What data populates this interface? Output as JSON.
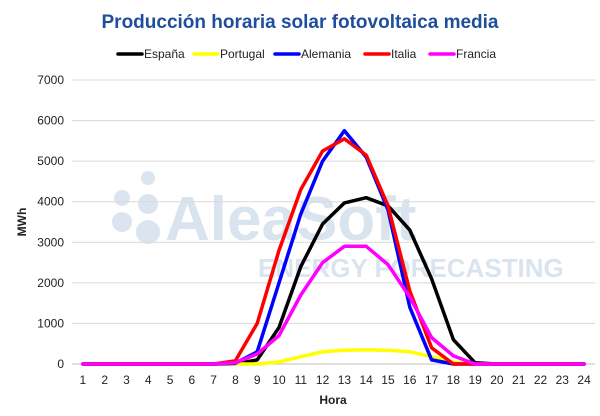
{
  "watermark": {
    "name": "AleaSoft",
    "tagline": "ENERGY FORECASTING"
  },
  "chart_data": {
    "type": "line",
    "title": "Producción horaria solar fotovoltaica media",
    "title_color": "#1f4e9c",
    "xlabel": "Hora",
    "ylabel": "MWh",
    "x": [
      1,
      2,
      3,
      4,
      5,
      6,
      7,
      8,
      9,
      10,
      11,
      12,
      13,
      14,
      15,
      16,
      17,
      18,
      19,
      20,
      21,
      22,
      23,
      24
    ],
    "ylim": [
      0,
      7000
    ],
    "yticks": [
      0,
      1000,
      2000,
      3000,
      4000,
      5000,
      6000,
      7000
    ],
    "grid": "horizontal",
    "legend_position": "top",
    "series": [
      {
        "name": "España",
        "color": "#000000",
        "values": [
          0,
          0,
          0,
          0,
          0,
          0,
          0,
          0,
          100,
          900,
          2400,
          3450,
          3970,
          4100,
          3900,
          3300,
          2100,
          600,
          30,
          0,
          0,
          0,
          0,
          0
        ]
      },
      {
        "name": "Portugal",
        "color": "#ffff00",
        "values": [
          0,
          0,
          0,
          0,
          0,
          0,
          0,
          0,
          0,
          50,
          180,
          300,
          340,
          350,
          340,
          300,
          180,
          40,
          0,
          0,
          0,
          0,
          0,
          0
        ]
      },
      {
        "name": "Alemania",
        "color": "#0000ff",
        "values": [
          0,
          0,
          0,
          0,
          0,
          0,
          0,
          20,
          300,
          2000,
          3700,
          5000,
          5750,
          5100,
          3800,
          1400,
          100,
          0,
          0,
          0,
          0,
          0,
          0,
          0
        ]
      },
      {
        "name": "Italia",
        "color": "#ff0000",
        "values": [
          0,
          0,
          0,
          0,
          0,
          0,
          0,
          80,
          1000,
          2800,
          4300,
          5250,
          5550,
          5150,
          3900,
          1800,
          400,
          0,
          0,
          0,
          0,
          0,
          0,
          0
        ]
      },
      {
        "name": "Francia",
        "color": "#ff00ff",
        "values": [
          0,
          0,
          0,
          0,
          0,
          0,
          0,
          30,
          250,
          700,
          1700,
          2500,
          2900,
          2900,
          2450,
          1650,
          650,
          200,
          0,
          0,
          0,
          0,
          0,
          0
        ]
      }
    ]
  }
}
